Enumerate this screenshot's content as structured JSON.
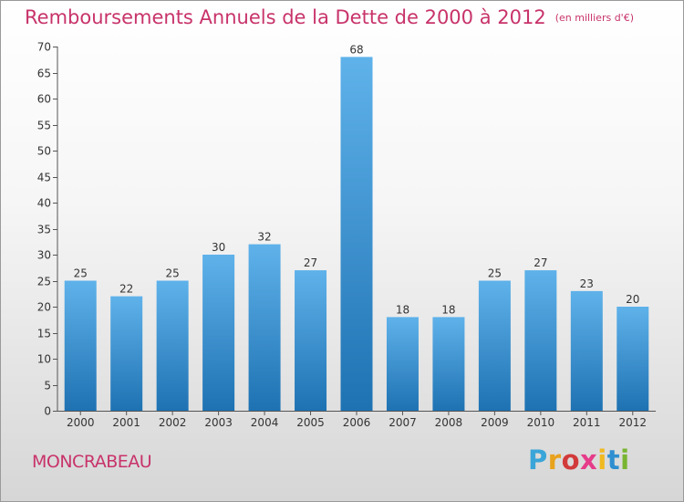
{
  "header": {
    "title": "Remboursements Annuels de la Dette de 2000 à 2012",
    "unit": "(en milliers d'€)"
  },
  "footer": {
    "town": "MONCRABEAU",
    "logo": "Proxiti"
  },
  "colors": {
    "accent": "#c8336a",
    "bar_light": "#5aaee6",
    "bar_dark": "#1f74b4"
  },
  "chart_data": {
    "type": "bar",
    "title": "Remboursements Annuels de la Dette de 2000 à 2012",
    "subtitle": "(en milliers d'€)",
    "xlabel": "",
    "ylabel": "",
    "categories": [
      "2000",
      "2001",
      "2002",
      "2003",
      "2004",
      "2005",
      "2006",
      "2007",
      "2008",
      "2009",
      "2010",
      "2011",
      "2012"
    ],
    "values": [
      25,
      22,
      25,
      30,
      32,
      27,
      68,
      18,
      18,
      25,
      27,
      23,
      20
    ],
    "ylim": [
      0,
      70
    ],
    "yticks": [
      0,
      5,
      10,
      15,
      20,
      25,
      30,
      35,
      40,
      45,
      50,
      55,
      60,
      65,
      70
    ],
    "grid": false,
    "data_labels": true
  }
}
